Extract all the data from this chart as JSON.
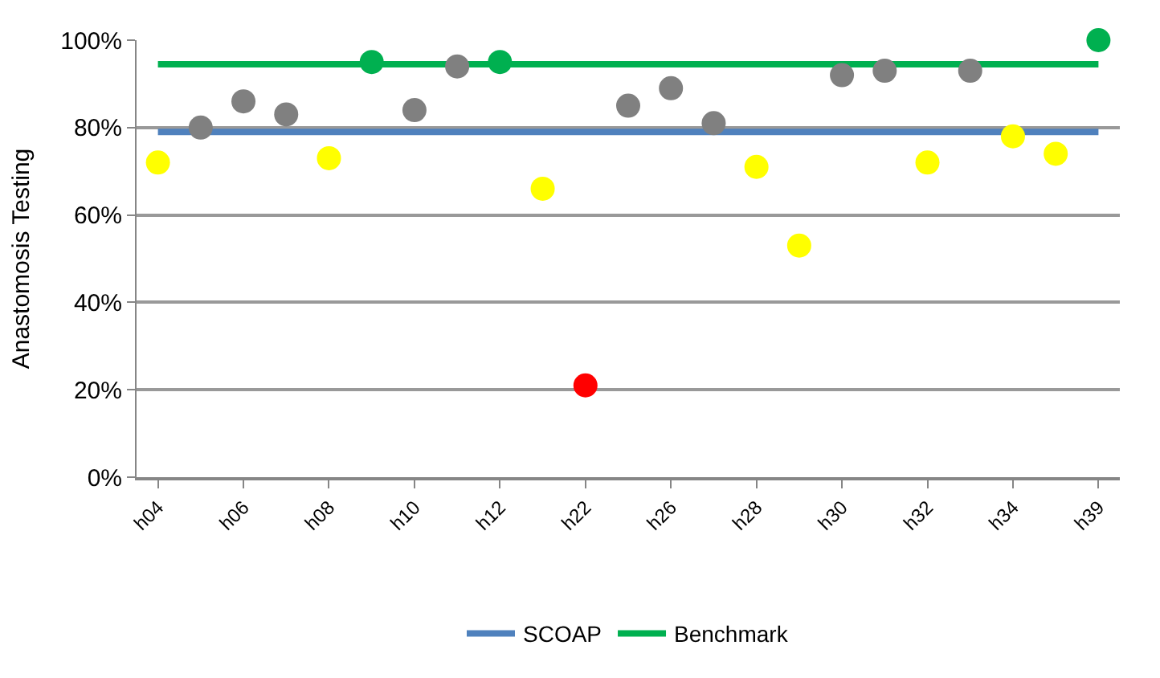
{
  "chart_data": {
    "type": "scatter",
    "ylabel": "Anastomosis Testing",
    "categories": [
      "h04",
      null,
      "h06",
      null,
      "h08",
      null,
      "h10",
      null,
      "h12",
      null,
      "h22",
      null,
      "h26",
      null,
      "h28",
      null,
      "h30",
      null,
      "h32",
      null,
      "h34",
      null,
      "h39"
    ],
    "series": [
      {
        "type": "line",
        "name": "SCOAP",
        "color": "#4f81bd",
        "marker": "none",
        "values": [
          79,
          79,
          79,
          79,
          79,
          79,
          79,
          79,
          79,
          79,
          79,
          79,
          79,
          79,
          79,
          79,
          79,
          79,
          79,
          79,
          79,
          79,
          79
        ]
      },
      {
        "type": "line",
        "name": "Benchmark",
        "color": "#00b050",
        "marker": "none",
        "values": [
          94.5,
          94.5,
          94.5,
          94.5,
          94.5,
          94.5,
          94.5,
          94.5,
          94.5,
          94.5,
          94.5,
          94.5,
          94.5,
          94.5,
          94.5,
          94.5,
          94.5,
          94.5,
          94.5,
          94.5,
          94.5,
          94.5,
          94.5
        ]
      },
      {
        "marker": "circle",
        "values": [
          72,
          80,
          86,
          83,
          73,
          95,
          84,
          94,
          95,
          66,
          21,
          85,
          89,
          81,
          71,
          53,
          92,
          93,
          72,
          93,
          78,
          74,
          100
        ],
        "colors": [
          "#ffff00",
          "#808080",
          "#808080",
          "#808080",
          "#ffff00",
          "#00b050",
          "#808080",
          "#808080",
          "#00b050",
          "#ffff00",
          "#ff0000",
          "#808080",
          "#808080",
          "#808080",
          "#ffff00",
          "#ffff00",
          "#808080",
          "#808080",
          "#ffff00",
          "#808080",
          "#ffff00",
          "#ffff00",
          "#00b050"
        ]
      }
    ],
    "ylim": [
      0,
      100
    ],
    "yticks": [
      {
        "value": 0,
        "label": "0%"
      },
      {
        "value": 20,
        "label": "20%"
      },
      {
        "value": 40,
        "label": "40%"
      },
      {
        "value": 60,
        "label": "60%"
      },
      {
        "value": 80,
        "label": "80%"
      },
      {
        "value": 100,
        "label": "100%"
      }
    ],
    "grid": "y",
    "legend": "bottom"
  }
}
